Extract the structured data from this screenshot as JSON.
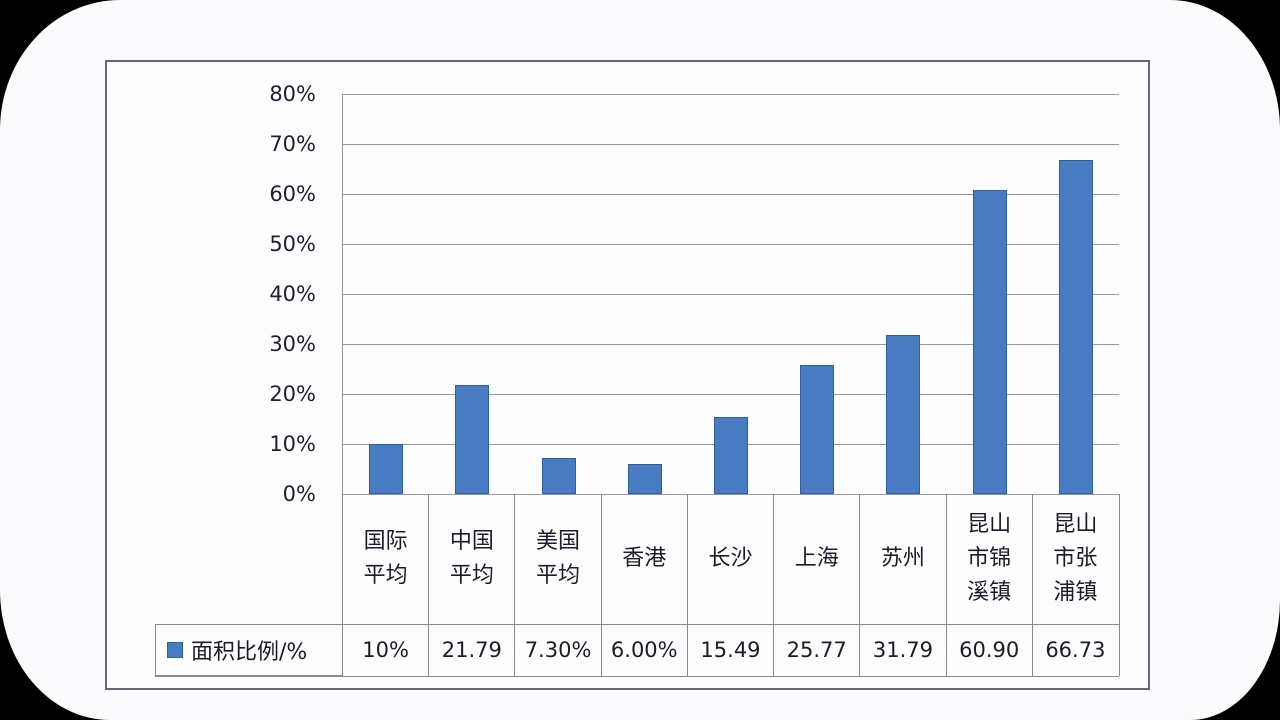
{
  "chart_data": {
    "type": "bar",
    "title": "",
    "xlabel": "",
    "ylabel": "",
    "ylim": [
      0,
      80
    ],
    "yticks": [
      "0%",
      "10%",
      "20%",
      "30%",
      "40%",
      "50%",
      "60%",
      "70%",
      "80%"
    ],
    "grid": true,
    "legend_position": "data-table-left",
    "categories": [
      "国际平均",
      "中国平均",
      "美国平均",
      "香港",
      "长沙",
      "上海",
      "苏州",
      "昆山市锦溪镇",
      "昆山市张浦镇"
    ],
    "category_lines": [
      [
        "国际",
        "平均"
      ],
      [
        "中国",
        "平均"
      ],
      [
        "美国",
        "平均"
      ],
      [
        "香港"
      ],
      [
        "长沙"
      ],
      [
        "上海"
      ],
      [
        "苏州"
      ],
      [
        "昆山",
        "市锦",
        "溪镇"
      ],
      [
        "昆山",
        "市张",
        "浦镇"
      ]
    ],
    "series": [
      {
        "name": "面积比例/%",
        "color": "#4a7cc4",
        "values": [
          10,
          21.79,
          7.3,
          6.0,
          15.49,
          25.77,
          31.79,
          60.9,
          66.73
        ],
        "labels": [
          "10%",
          "21.79",
          "7.30%",
          "6.00%",
          "15.49",
          "25.77",
          "31.79",
          "60.90",
          "66.73"
        ]
      }
    ]
  }
}
